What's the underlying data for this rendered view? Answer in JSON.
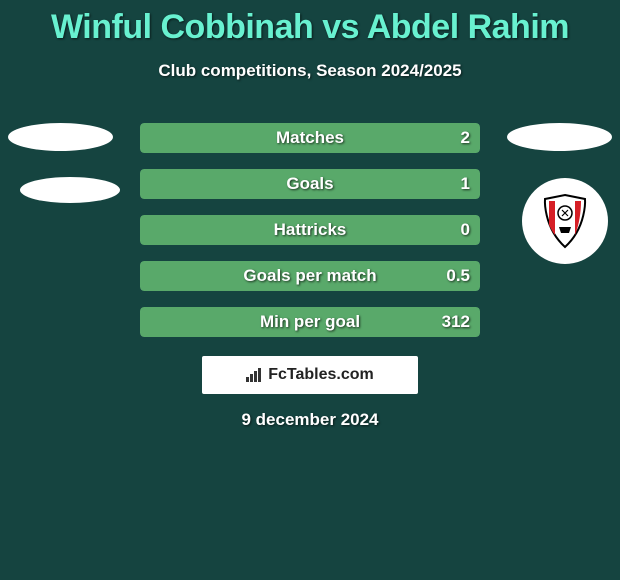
{
  "title": "Winful Cobbinah vs Abdel Rahim",
  "subtitle": "Club competitions, Season 2024/2025",
  "colors": {
    "background": "#154440",
    "title": "#68f1d0",
    "text": "#ffffff",
    "bar_fill": "#59a96a",
    "bar_empty": "#3d7a5a",
    "brand_bg": "#ffffff"
  },
  "bars": [
    {
      "label": "Matches",
      "left_val": "",
      "right_val": "2",
      "left_pct": 0,
      "right_pct": 100
    },
    {
      "label": "Goals",
      "left_val": "",
      "right_val": "1",
      "left_pct": 0,
      "right_pct": 100
    },
    {
      "label": "Hattricks",
      "left_val": "",
      "right_val": "0",
      "left_pct": 0,
      "right_pct": 100
    },
    {
      "label": "Goals per match",
      "left_val": "",
      "right_val": "0.5",
      "left_pct": 0,
      "right_pct": 100
    },
    {
      "label": "Min per goal",
      "left_val": "",
      "right_val": "312",
      "left_pct": 0,
      "right_pct": 100
    }
  ],
  "brand": "FcTables.com",
  "date": "9 december 2024",
  "shield": {
    "bg": "#ffffff",
    "border": "#000000",
    "stripes": "#d61f26"
  }
}
